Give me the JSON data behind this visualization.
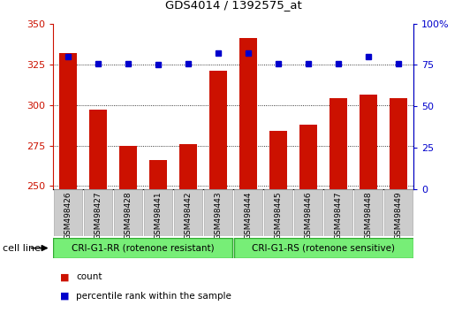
{
  "title": "GDS4014 / 1392575_at",
  "categories": [
    "GSM498426",
    "GSM498427",
    "GSM498428",
    "GSM498441",
    "GSM498442",
    "GSM498443",
    "GSM498444",
    "GSM498445",
    "GSM498446",
    "GSM498447",
    "GSM498448",
    "GSM498449"
  ],
  "bar_values": [
    332,
    297,
    275,
    266,
    276,
    321,
    341,
    284,
    288,
    304,
    306,
    304
  ],
  "dot_values": [
    80,
    76,
    76,
    75,
    76,
    82,
    82,
    76,
    76,
    76,
    80,
    76
  ],
  "bar_color": "#cc1100",
  "dot_color": "#0000cc",
  "ylim_left": [
    248,
    350
  ],
  "ylim_right": [
    0,
    100
  ],
  "yticks_left": [
    250,
    275,
    300,
    325,
    350
  ],
  "yticks_right": [
    0,
    25,
    50,
    75,
    100
  ],
  "group1_label": "CRI-G1-RR (rotenone resistant)",
  "group2_label": "CRI-G1-RS (rotenone sensitive)",
  "cell_line_label": "cell line",
  "legend_bar_label": "count",
  "legend_dot_label": "percentile rank within the sample",
  "group_bg_color": "#77ee77",
  "tick_label_bg": "#cccccc",
  "plot_bg": "#ffffff",
  "grid_color": "#000000",
  "right_axis_color": "#0000cc",
  "left_axis_color": "#cc1100",
  "bar_width": 0.6
}
